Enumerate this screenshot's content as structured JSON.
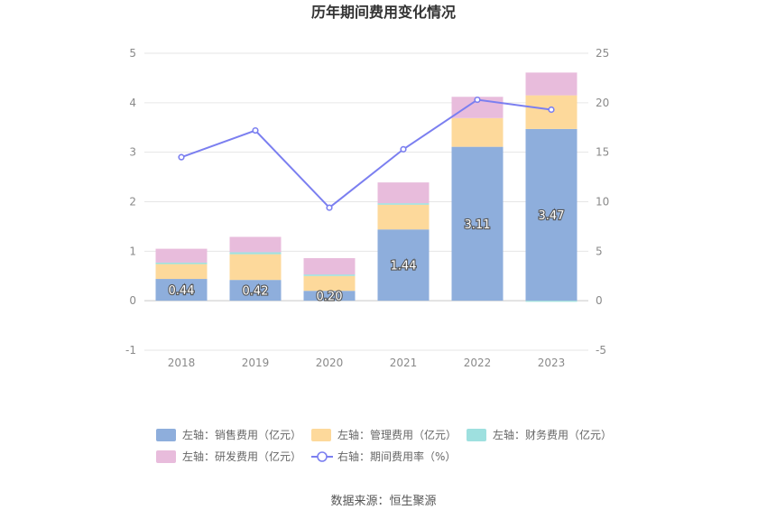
{
  "chart_data": {
    "type": "bar",
    "title": "历年期间费用变化情况",
    "categories": [
      "2018",
      "2019",
      "2020",
      "2021",
      "2022",
      "2023"
    ],
    "stacked": true,
    "left_axis": {
      "ylim": [
        -1,
        5
      ],
      "ticks": [
        "-1",
        "0",
        "1",
        "2",
        "3",
        "4",
        "5"
      ]
    },
    "right_axis": {
      "ylim": [
        -5,
        25
      ],
      "ticks": [
        "-5",
        "0",
        "5",
        "10",
        "15",
        "20",
        "25"
      ]
    },
    "grid": true,
    "legend_position": "bottom",
    "series": [
      {
        "name": "左轴：销售费用（亿元）",
        "axis": "left",
        "type": "bar",
        "color": "#8eaedc",
        "values": [
          0.44,
          0.42,
          0.2,
          1.44,
          3.11,
          3.47
        ],
        "data_labels": [
          "0.44",
          "0.42",
          "0.20",
          "1.44",
          "3.11",
          "3.47"
        ]
      },
      {
        "name": "左轴：管理费用（亿元）",
        "axis": "left",
        "type": "bar",
        "color": "#fdd99b",
        "values": [
          0.3,
          0.52,
          0.3,
          0.5,
          0.58,
          0.68
        ]
      },
      {
        "name": "左轴：财务费用（亿元）",
        "axis": "left",
        "type": "bar",
        "color": "#9ee0df",
        "values": [
          0.03,
          0.04,
          0.03,
          0.03,
          0.0,
          -0.02
        ]
      },
      {
        "name": "左轴：研发费用（亿元）",
        "axis": "left",
        "type": "bar",
        "color": "#e8bcdc",
        "values": [
          0.28,
          0.31,
          0.33,
          0.42,
          0.43,
          0.46
        ]
      },
      {
        "name": "右轴：期间费用率（%）",
        "axis": "right",
        "type": "line",
        "color": "#7b7ff0",
        "values": [
          14.5,
          17.2,
          9.4,
          15.3,
          20.3,
          19.3
        ]
      }
    ],
    "source": "数据来源：恒生聚源"
  }
}
